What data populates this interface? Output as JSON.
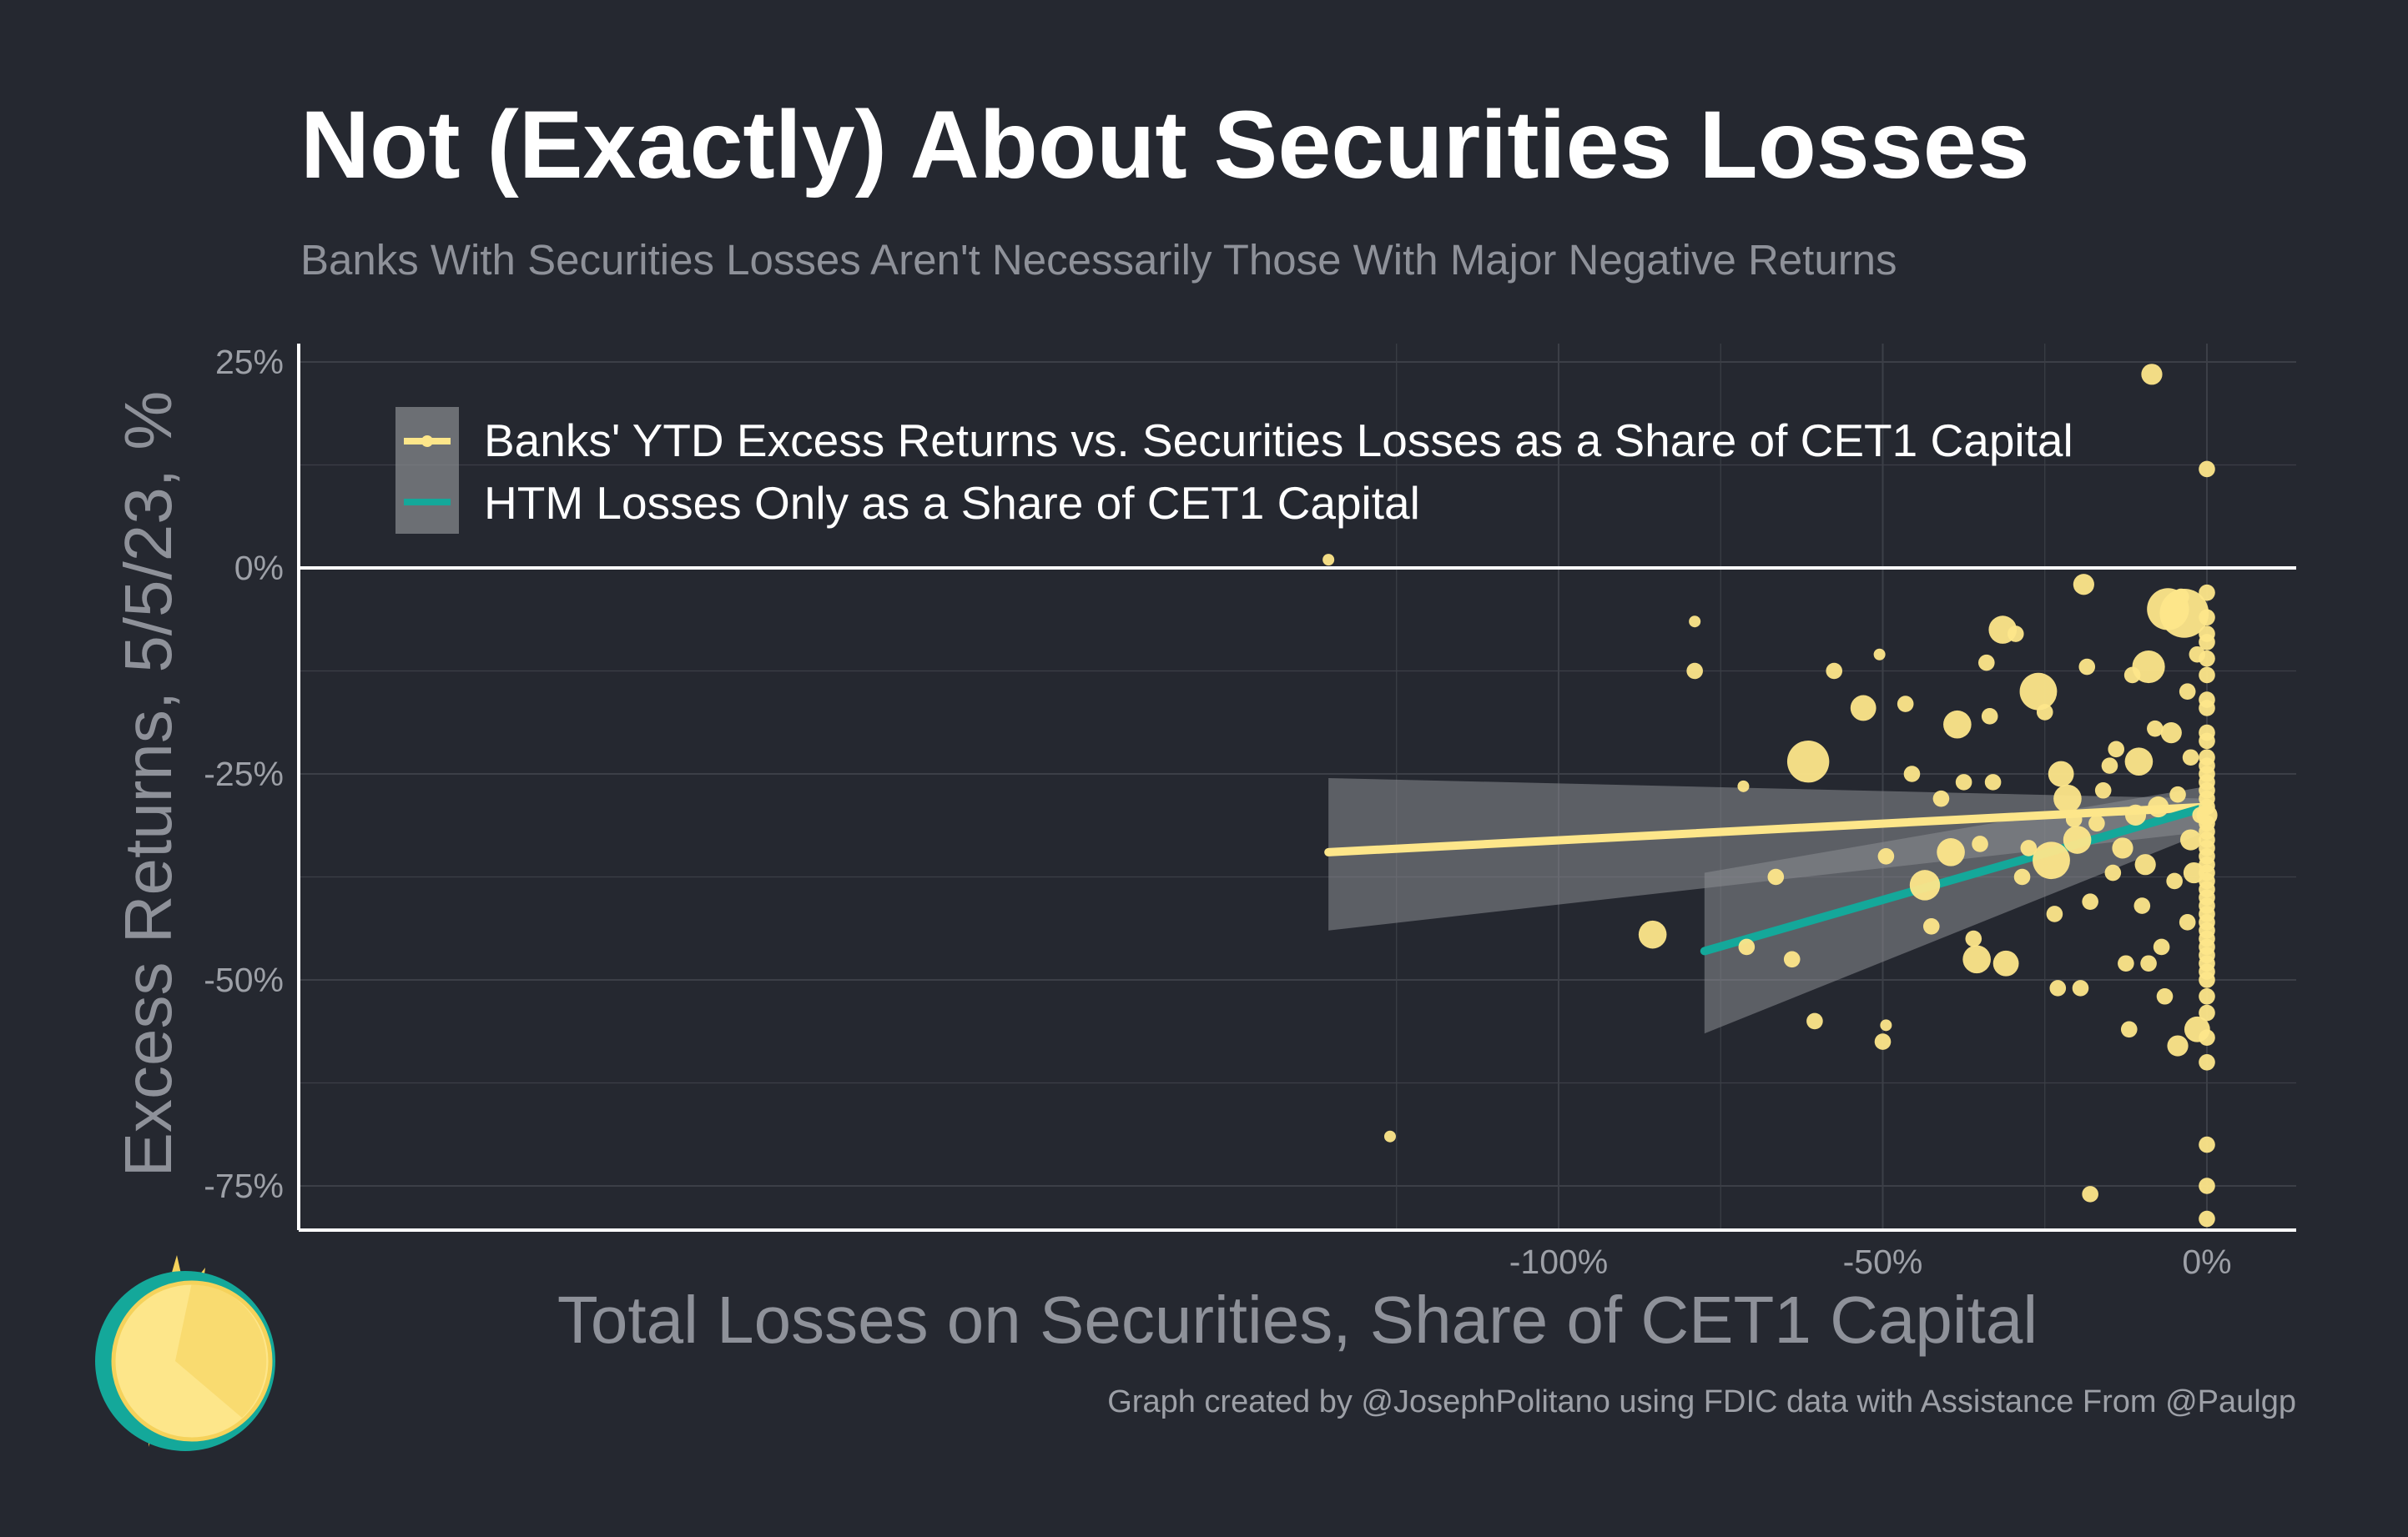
{
  "title": "Not (Exactly) About Securities Losses",
  "subtitle": "Banks With Securities Losses Aren't Necessarily Those With Major Negative Returns",
  "caption": "Graph created by @JosephPolitano using FDIC data with Assistance From @Paulgp",
  "colors": {
    "background": "#252830",
    "points": "#fde68a",
    "all_securities_line": "#fde68a",
    "htm_line": "#14a89a",
    "confidence_band": "#8a8d92",
    "grid": "#3c3f47",
    "axis": "#ffffff"
  },
  "chart_data": {
    "type": "scatter",
    "title": "Not (Exactly) About Securities Losses",
    "subtitle": "Banks With Securities Losses Aren't Necessarily Those With Major Negative Returns",
    "xlabel": "Total Losses on Securities, Share of CET1 Capital",
    "ylabel": "Excess Returns, 5/5/23, %",
    "xlim": [
      -147,
      7
    ],
    "ylim": [
      -80,
      27
    ],
    "x_ticks": [
      -100,
      -50,
      0
    ],
    "x_tick_labels": [
      "-100%",
      "-50%",
      "0%"
    ],
    "y_ticks": [
      25,
      0,
      -25,
      -50,
      -75
    ],
    "y_tick_labels": [
      "25%",
      "0%",
      "-25%",
      "-50%",
      "-75%"
    ],
    "grid": true,
    "legend_position": "top-left",
    "legend": [
      "Banks' YTD Excess Returns vs. Securities Losses as a Share of CET1 Capital",
      "HTM Losses Only as a Share of CET1 Capital"
    ],
    "trend_lines": [
      {
        "name": "Banks' YTD Excess Returns vs. Securities Losses as a Share of CET1 Capital",
        "x": [
          -135.5,
          0
        ],
        "y": [
          -34.5,
          -29
        ],
        "band_upper": [
          -25.5,
          -28
        ],
        "band_lower": [
          -44,
          -32
        ],
        "color": "#fde68a"
      },
      {
        "name": "HTM Losses Only as a Share of CET1 Capital",
        "x": [
          -77.5,
          0
        ],
        "y": [
          -46.5,
          -29
        ],
        "band_upper": [
          -37,
          -26.5
        ],
        "band_lower": [
          -56.5,
          -32
        ],
        "color": "#14a89a"
      }
    ],
    "points": [
      {
        "x": -135.5,
        "y": 1,
        "r": 1
      },
      {
        "x": -126,
        "y": -69,
        "r": 1
      },
      {
        "x": -79,
        "y": -6.5,
        "r": 1
      },
      {
        "x": -79,
        "y": -12.5,
        "r": 1.4
      },
      {
        "x": -85.5,
        "y": -44.5,
        "r": 2.4
      },
      {
        "x": -71.5,
        "y": -26.5,
        "r": 1
      },
      {
        "x": -61.5,
        "y": -23.5,
        "r": 3.6
      },
      {
        "x": -66.5,
        "y": -37.5,
        "r": 1.4
      },
      {
        "x": -64,
        "y": -47.5,
        "r": 1.4
      },
      {
        "x": -71,
        "y": -46,
        "r": 1.4
      },
      {
        "x": -60.5,
        "y": -55,
        "r": 1.4
      },
      {
        "x": -57.5,
        "y": -12.5,
        "r": 1.4
      },
      {
        "x": -53,
        "y": -17,
        "r": 2.2
      },
      {
        "x": -50.5,
        "y": -10.5,
        "r": 1
      },
      {
        "x": -50,
        "y": -57.5,
        "r": 1.4
      },
      {
        "x": -49.5,
        "y": -55.5,
        "r": 1
      },
      {
        "x": -49.5,
        "y": -35,
        "r": 1.4
      },
      {
        "x": -46.5,
        "y": -16.5,
        "r": 1.4
      },
      {
        "x": -45.5,
        "y": -25,
        "r": 1.4
      },
      {
        "x": -43.5,
        "y": -38.5,
        "r": 2.6
      },
      {
        "x": -42.5,
        "y": -43.5,
        "r": 1.4
      },
      {
        "x": -41,
        "y": -28,
        "r": 1.4
      },
      {
        "x": -39.5,
        "y": -34.5,
        "r": 2.4
      },
      {
        "x": -38.5,
        "y": -19,
        "r": 2.4
      },
      {
        "x": -37.5,
        "y": -26,
        "r": 1.4
      },
      {
        "x": -36,
        "y": -45,
        "r": 1.4
      },
      {
        "x": -35.5,
        "y": -47.5,
        "r": 2.4
      },
      {
        "x": -35,
        "y": -33.5,
        "r": 1.4
      },
      {
        "x": -34,
        "y": -11.5,
        "r": 1.4
      },
      {
        "x": -33.5,
        "y": -18,
        "r": 1.4
      },
      {
        "x": -33,
        "y": -26,
        "r": 1.4
      },
      {
        "x": -31.5,
        "y": -7.5,
        "r": 2.4
      },
      {
        "x": -31,
        "y": -48,
        "r": 2.2
      },
      {
        "x": -29.5,
        "y": -8,
        "r": 1.4
      },
      {
        "x": -28.5,
        "y": -37.5,
        "r": 1.4
      },
      {
        "x": -27.5,
        "y": -34,
        "r": 1.4
      },
      {
        "x": -26,
        "y": -15,
        "r": 3.2
      },
      {
        "x": -25,
        "y": -17.5,
        "r": 1.4
      },
      {
        "x": -24,
        "y": -35.5,
        "r": 3.2
      },
      {
        "x": -23.5,
        "y": -42,
        "r": 1.4
      },
      {
        "x": -23,
        "y": -51,
        "r": 1.4
      },
      {
        "x": -22.5,
        "y": -25,
        "r": 2.2
      },
      {
        "x": -21.5,
        "y": -28,
        "r": 2.4
      },
      {
        "x": -20.5,
        "y": -30.5,
        "r": 1.4
      },
      {
        "x": -20,
        "y": -33,
        "r": 2.4
      },
      {
        "x": -19.5,
        "y": -51,
        "r": 1.4
      },
      {
        "x": -19,
        "y": -2,
        "r": 1.8
      },
      {
        "x": -18.5,
        "y": -12,
        "r": 1.4
      },
      {
        "x": -18,
        "y": -40.5,
        "r": 1.4
      },
      {
        "x": -18,
        "y": -76,
        "r": 1.4
      },
      {
        "x": -17,
        "y": -31,
        "r": 1.4
      },
      {
        "x": -16,
        "y": -27,
        "r": 1.4
      },
      {
        "x": -15,
        "y": -24,
        "r": 1.4
      },
      {
        "x": -14.5,
        "y": -37,
        "r": 1.4
      },
      {
        "x": -14,
        "y": -22,
        "r": 1.4
      },
      {
        "x": -13,
        "y": -34,
        "r": 1.8
      },
      {
        "x": -12.5,
        "y": -48,
        "r": 1.4
      },
      {
        "x": -12,
        "y": -56,
        "r": 1.4
      },
      {
        "x": -11.5,
        "y": -13,
        "r": 1.4
      },
      {
        "x": -11,
        "y": -30,
        "r": 1.8
      },
      {
        "x": -10.5,
        "y": -23.5,
        "r": 2.4
      },
      {
        "x": -10,
        "y": -41,
        "r": 1.4
      },
      {
        "x": -9.5,
        "y": -36,
        "r": 1.8
      },
      {
        "x": -9,
        "y": -12,
        "r": 2.8
      },
      {
        "x": -9,
        "y": -48,
        "r": 1.4
      },
      {
        "x": -8.5,
        "y": 23.5,
        "r": 1.8
      },
      {
        "x": -8,
        "y": -19.5,
        "r": 1.4
      },
      {
        "x": -7.5,
        "y": -29,
        "r": 1.8
      },
      {
        "x": -7,
        "y": -46,
        "r": 1.4
      },
      {
        "x": -6.5,
        "y": -52,
        "r": 1.4
      },
      {
        "x": -6,
        "y": -5,
        "r": 3.6
      },
      {
        "x": -5.5,
        "y": -20,
        "r": 1.8
      },
      {
        "x": -5,
        "y": -38,
        "r": 1.4
      },
      {
        "x": -4.5,
        "y": -58,
        "r": 1.8
      },
      {
        "x": -4.5,
        "y": -27.5,
        "r": 1.4
      },
      {
        "x": -4,
        "y": -3.5,
        "r": 1.4
      },
      {
        "x": -3.5,
        "y": -5.5,
        "r": 4.2
      },
      {
        "x": -3,
        "y": -15,
        "r": 1.4
      },
      {
        "x": -3,
        "y": -43,
        "r": 1.4
      },
      {
        "x": -2.5,
        "y": -33,
        "r": 1.8
      },
      {
        "x": -2.5,
        "y": -23,
        "r": 1.4
      },
      {
        "x": -2,
        "y": -37,
        "r": 1.8
      },
      {
        "x": -1.5,
        "y": -10.5,
        "r": 1.4
      },
      {
        "x": -1.5,
        "y": -56,
        "r": 2.2
      },
      {
        "x": -1,
        "y": -30,
        "r": 1.4
      },
      {
        "x": 0,
        "y": -8,
        "r": 1.4
      },
      {
        "x": 0,
        "y": -47,
        "r": 1.4
      },
      {
        "x": 0,
        "y": -33,
        "r": 1.4
      },
      {
        "x": 0,
        "y": -30,
        "r": 1.8
      },
      {
        "x": 0,
        "y": -16,
        "r": 1.4
      },
      {
        "x": 0,
        "y": -3,
        "r": 1.4
      },
      {
        "x": 0,
        "y": -79,
        "r": 1.4
      },
      {
        "x": 0,
        "y": -46,
        "r": 1.4
      },
      {
        "x": 0,
        "y": -37,
        "r": 1.4
      },
      {
        "x": 0,
        "y": -36,
        "r": 1.4
      },
      {
        "x": 0,
        "y": -23,
        "r": 1.4
      },
      {
        "x": 0,
        "y": -38,
        "r": 1.4
      },
      {
        "x": 0,
        "y": -42,
        "r": 1.4
      },
      {
        "x": 0,
        "y": -25,
        "r": 1.4
      },
      {
        "x": 0,
        "y": -27,
        "r": 1.4
      },
      {
        "x": 0,
        "y": -31,
        "r": 1.4
      },
      {
        "x": 0,
        "y": -26,
        "r": 1.4
      },
      {
        "x": 0,
        "y": -28,
        "r": 1.4
      },
      {
        "x": 0,
        "y": -35,
        "r": 1.4
      },
      {
        "x": 0,
        "y": -39,
        "r": 1.4
      },
      {
        "x": 0,
        "y": -41,
        "r": 1.4
      },
      {
        "x": 0,
        "y": -44,
        "r": 1.4
      },
      {
        "x": 0,
        "y": -49,
        "r": 1.4
      },
      {
        "x": 0,
        "y": -52,
        "r": 1.4
      },
      {
        "x": 0,
        "y": -60,
        "r": 1.4
      },
      {
        "x": 0,
        "y": -70,
        "r": 1.4
      },
      {
        "x": 0,
        "y": -13,
        "r": 1.4
      },
      {
        "x": 0,
        "y": -20,
        "r": 1.4
      },
      {
        "x": 0,
        "y": 12,
        "r": 1.4
      },
      {
        "x": 0,
        "y": -6,
        "r": 1.4
      },
      {
        "x": 0,
        "y": -9,
        "r": 1.4
      },
      {
        "x": 0,
        "y": -11,
        "r": 1.4
      },
      {
        "x": 0,
        "y": -17,
        "r": 1.4
      },
      {
        "x": 0,
        "y": -21,
        "r": 1.4
      },
      {
        "x": 0,
        "y": -24,
        "r": 1.4
      },
      {
        "x": 0,
        "y": -29,
        "r": 1.4
      },
      {
        "x": 0,
        "y": -32,
        "r": 1.4
      },
      {
        "x": 0,
        "y": -34,
        "r": 1.4
      },
      {
        "x": 0,
        "y": -40,
        "r": 1.4
      },
      {
        "x": 0,
        "y": -43,
        "r": 1.4
      },
      {
        "x": 0,
        "y": -45,
        "r": 1.4
      },
      {
        "x": 0,
        "y": -48,
        "r": 1.4
      },
      {
        "x": 0,
        "y": -50,
        "r": 1.4
      },
      {
        "x": 0,
        "y": -54,
        "r": 1.4
      },
      {
        "x": 0,
        "y": -57,
        "r": 1.4
      },
      {
        "x": 0,
        "y": -75,
        "r": 1.4
      }
    ]
  }
}
